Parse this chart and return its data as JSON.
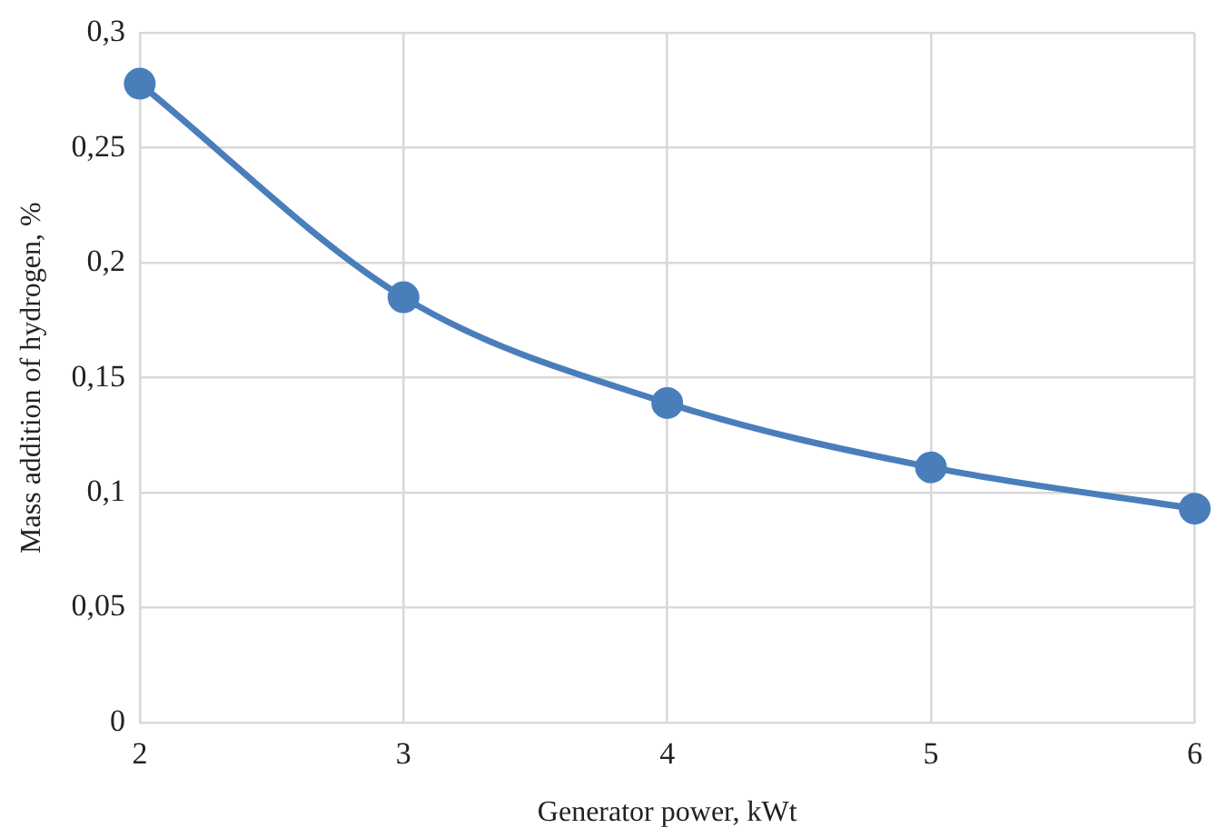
{
  "chart_data": {
    "type": "line",
    "xlabel": "Generator power, kWt",
    "ylabel": "Mass addition of hydrogen, %",
    "x": [
      2,
      3,
      4,
      5,
      6
    ],
    "series": [
      {
        "color": "#4a7ebb",
        "values": [
          0.278,
          0.185,
          0.139,
          0.111,
          0.093
        ]
      }
    ],
    "xlim": [
      2,
      6
    ],
    "xticks": [
      2,
      3,
      4,
      5,
      6
    ],
    "ylim": [
      0,
      0.3
    ],
    "yticks": [
      0,
      {
        "value": 0.05,
        "label": "0,05"
      },
      {
        "value": 0.1,
        "label": "0,1"
      },
      {
        "value": 0.15,
        "label": "0,15"
      },
      {
        "value": 0.2,
        "label": "0,2"
      },
      {
        "value": 0.25,
        "label": "0,25"
      },
      {
        "value": 0.3,
        "label": "0,3"
      }
    ],
    "grid": true,
    "legend": false,
    "marker": "circle",
    "line_style": "solid"
  }
}
